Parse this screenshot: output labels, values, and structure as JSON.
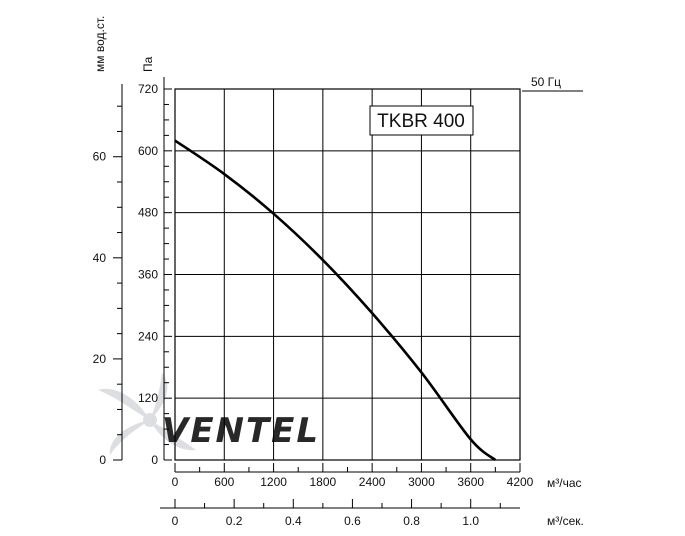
{
  "chart_data": {
    "type": "line",
    "title": "TKBR 400",
    "frequency_label": "50 Гц",
    "x_label": "м³/час",
    "x2_label": "м³/сек.",
    "y_label": "Па",
    "y2_label": "мм вод.ст.",
    "xlim": [
      0,
      4200
    ],
    "ylim": [
      0,
      720
    ],
    "x_ticks": [
      0,
      600,
      1200,
      1800,
      2400,
      3000,
      3600,
      4200
    ],
    "y_ticks": [
      0,
      120,
      240,
      360,
      480,
      600,
      720
    ],
    "x2_ticks": [
      "0",
      "0.2",
      "0.4",
      "0.6",
      "0.8",
      "1.0"
    ],
    "x2_tick_values": [
      0,
      0.2,
      0.4,
      0.6,
      0.8,
      1.0
    ],
    "x2_lim": [
      0,
      1.1667
    ],
    "y2_ticks": [
      0,
      20,
      40,
      60
    ],
    "y2_lim": [
      0,
      73.4
    ],
    "grid": true,
    "series": [
      {
        "x": [
          0,
          600,
          1200,
          1800,
          2400,
          3000,
          3600,
          3900
        ],
        "values": [
          620,
          555,
          478,
          388,
          285,
          170,
          40,
          0
        ]
      }
    ]
  },
  "watermark": {
    "brand_text": "VENTEL"
  },
  "colors": {
    "line": "#000000",
    "grid": "#000000",
    "logo": "#d6d8dc"
  }
}
